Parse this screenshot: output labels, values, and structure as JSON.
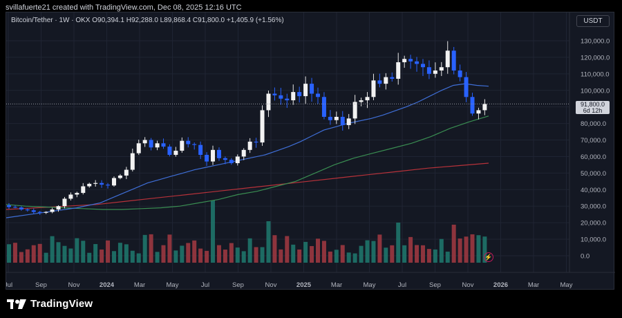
{
  "header": {
    "caption": "svillafuerte21 created with TradingView.com, Dec 08, 2025 12:16 UTC"
  },
  "legend": {
    "text": "Bitcoin/Tether · 1W · OKX  O90,394.1  H92,288.0  L89,868.4  C91,800.0  +1,405.9 (+1.56%)"
  },
  "toolbar": {
    "currency_label": "USDT"
  },
  "price_tag": {
    "price": "91,800.0",
    "countdown": "6d 12h"
  },
  "footer": {
    "brand": "TradingView"
  },
  "colors": {
    "up": "#26a69a",
    "down": "#2962ff",
    "ma_blue": "#3f6fd8",
    "ma_green": "#3a8e52",
    "ma_red": "#b8323a"
  },
  "chart_data": {
    "type": "candlestick",
    "y_ticks": [
      "130,000.0",
      "120,000.0",
      "110,000.0",
      "100,000.0",
      "90,000.0",
      "80,000.0",
      "70,000.0",
      "60,000.0",
      "50,000.0",
      "40,000.0",
      "30,000.0",
      "20,000.0",
      "10,000.0",
      "0.0"
    ],
    "x_ticks": [
      "Jul",
      "Sep",
      "Nov",
      "2024",
      "Mar",
      "May",
      "Jul",
      "Sep",
      "Nov",
      "2025",
      "Mar",
      "May",
      "Jul",
      "Sep",
      "Nov",
      "2026",
      "Mar",
      "May"
    ],
    "bold_ticks": [
      "2024",
      "2025",
      "2026"
    ],
    "close_price": 91800,
    "closes": [
      29500,
      29200,
      28000,
      27500,
      26500,
      26000,
      26500,
      28000,
      30000,
      34500,
      37000,
      38000,
      42000,
      43500,
      44000,
      43000,
      42500,
      47000,
      48500,
      52000,
      62000,
      68000,
      70000,
      65500,
      68000,
      66000,
      61000,
      63500,
      69500,
      67500,
      67000,
      61000,
      57000,
      64000,
      59000,
      58000,
      56000,
      60000,
      64000,
      69000,
      68500,
      88000,
      98000,
      97000,
      95000,
      94000,
      99000,
      96500,
      104000,
      98000,
      96000,
      84000,
      82000,
      84000,
      79000,
      83000,
      93000,
      94000,
      96000,
      106000,
      104000,
      108000,
      107000,
      117000,
      119000,
      117500,
      116000,
      114000,
      110000,
      112000,
      114000,
      124000,
      112000,
      108000,
      96000,
      86000,
      88000,
      91800
    ],
    "ma_blue_series": [
      23000,
      24000,
      25000,
      26000,
      27000,
      28000,
      29000,
      30500,
      32000,
      35000,
      38000,
      41000,
      44000,
      46000,
      48000,
      50000,
      52000,
      53500,
      55000,
      56500,
      58000,
      59500,
      61000,
      63500,
      66000,
      69000,
      72500,
      76000,
      78000,
      80000,
      81500,
      83000,
      85000,
      87500,
      90000,
      93000,
      96500,
      100000,
      103000,
      104000,
      103000,
      102500
    ],
    "ma_green_series": [
      31000,
      30000,
      29500,
      29000,
      28500,
      28000,
      28000,
      28500,
      29000,
      30000,
      32000,
      34000,
      37000,
      39000,
      42000,
      45000,
      50000,
      55000,
      59000,
      62000,
      65000,
      68000,
      72000,
      77000,
      81000,
      84500
    ],
    "ma_red_series": [
      28000,
      29000,
      30000,
      31000,
      33000,
      35000,
      37000,
      39000,
      41000,
      43000,
      45000,
      47000,
      49000,
      51000,
      53000,
      54500,
      56000
    ],
    "volume_note": "volume histogram (unitless bars)"
  }
}
